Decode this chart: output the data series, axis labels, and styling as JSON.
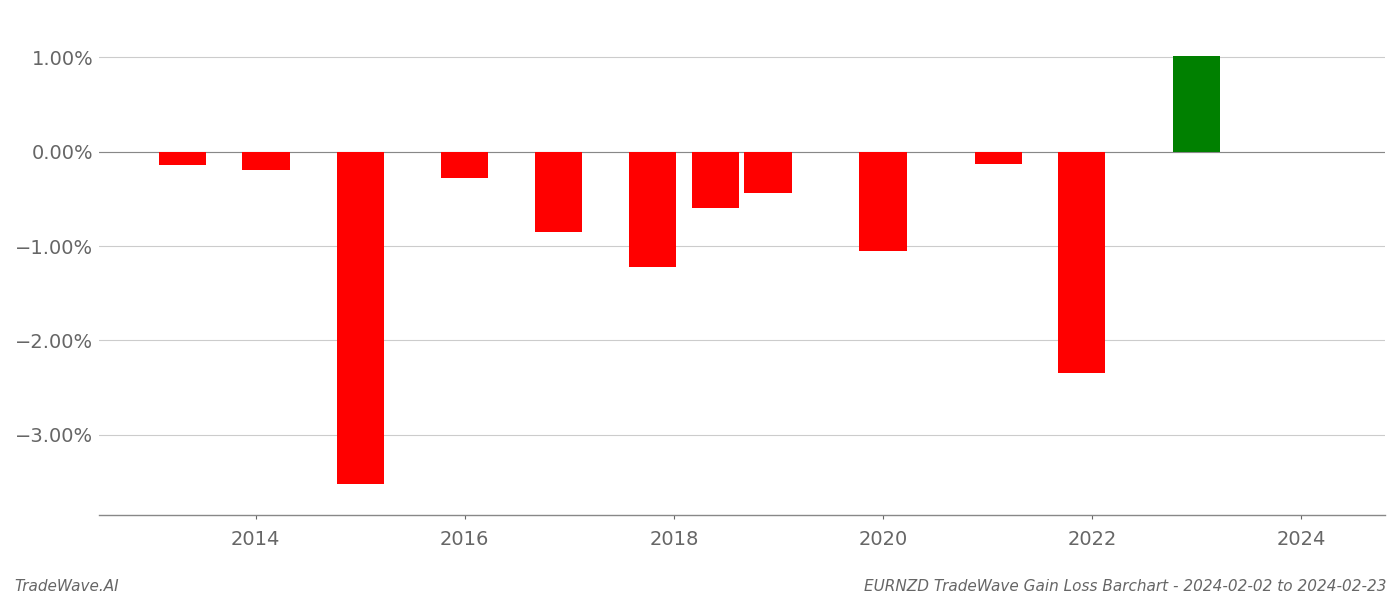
{
  "x_positions": [
    2013.3,
    2014.1,
    2015.0,
    2016.0,
    2016.9,
    2017.8,
    2018.4,
    2018.9,
    2020.0,
    2021.1,
    2021.9,
    2023.0
  ],
  "values": [
    -0.14,
    -0.19,
    -3.52,
    -0.28,
    -0.85,
    -1.22,
    -0.6,
    -0.44,
    -1.05,
    -0.13,
    -2.35,
    1.02
  ],
  "colors": [
    "#ff0000",
    "#ff0000",
    "#ff0000",
    "#ff0000",
    "#ff0000",
    "#ff0000",
    "#ff0000",
    "#ff0000",
    "#ff0000",
    "#ff0000",
    "#ff0000",
    "#008000"
  ],
  "bar_width": 0.45,
  "xlim": [
    2012.5,
    2024.8
  ],
  "ylim": [
    -3.85,
    1.45
  ],
  "yticks": [
    1.0,
    0.0,
    -1.0,
    -2.0,
    -3.0
  ],
  "ytick_labels": [
    "1.00%",
    "0.00%",
    "−1.00%",
    "−2.00%",
    "−3.00%"
  ],
  "xticks": [
    2014,
    2016,
    2018,
    2020,
    2022,
    2024
  ],
  "grid_color": "#cccccc",
  "bg_color": "#ffffff",
  "footer_left": "TradeWave.AI",
  "footer_right": "EURNZD TradeWave Gain Loss Barchart - 2024-02-02 to 2024-02-23",
  "footer_fontsize": 11,
  "tick_fontsize": 14
}
